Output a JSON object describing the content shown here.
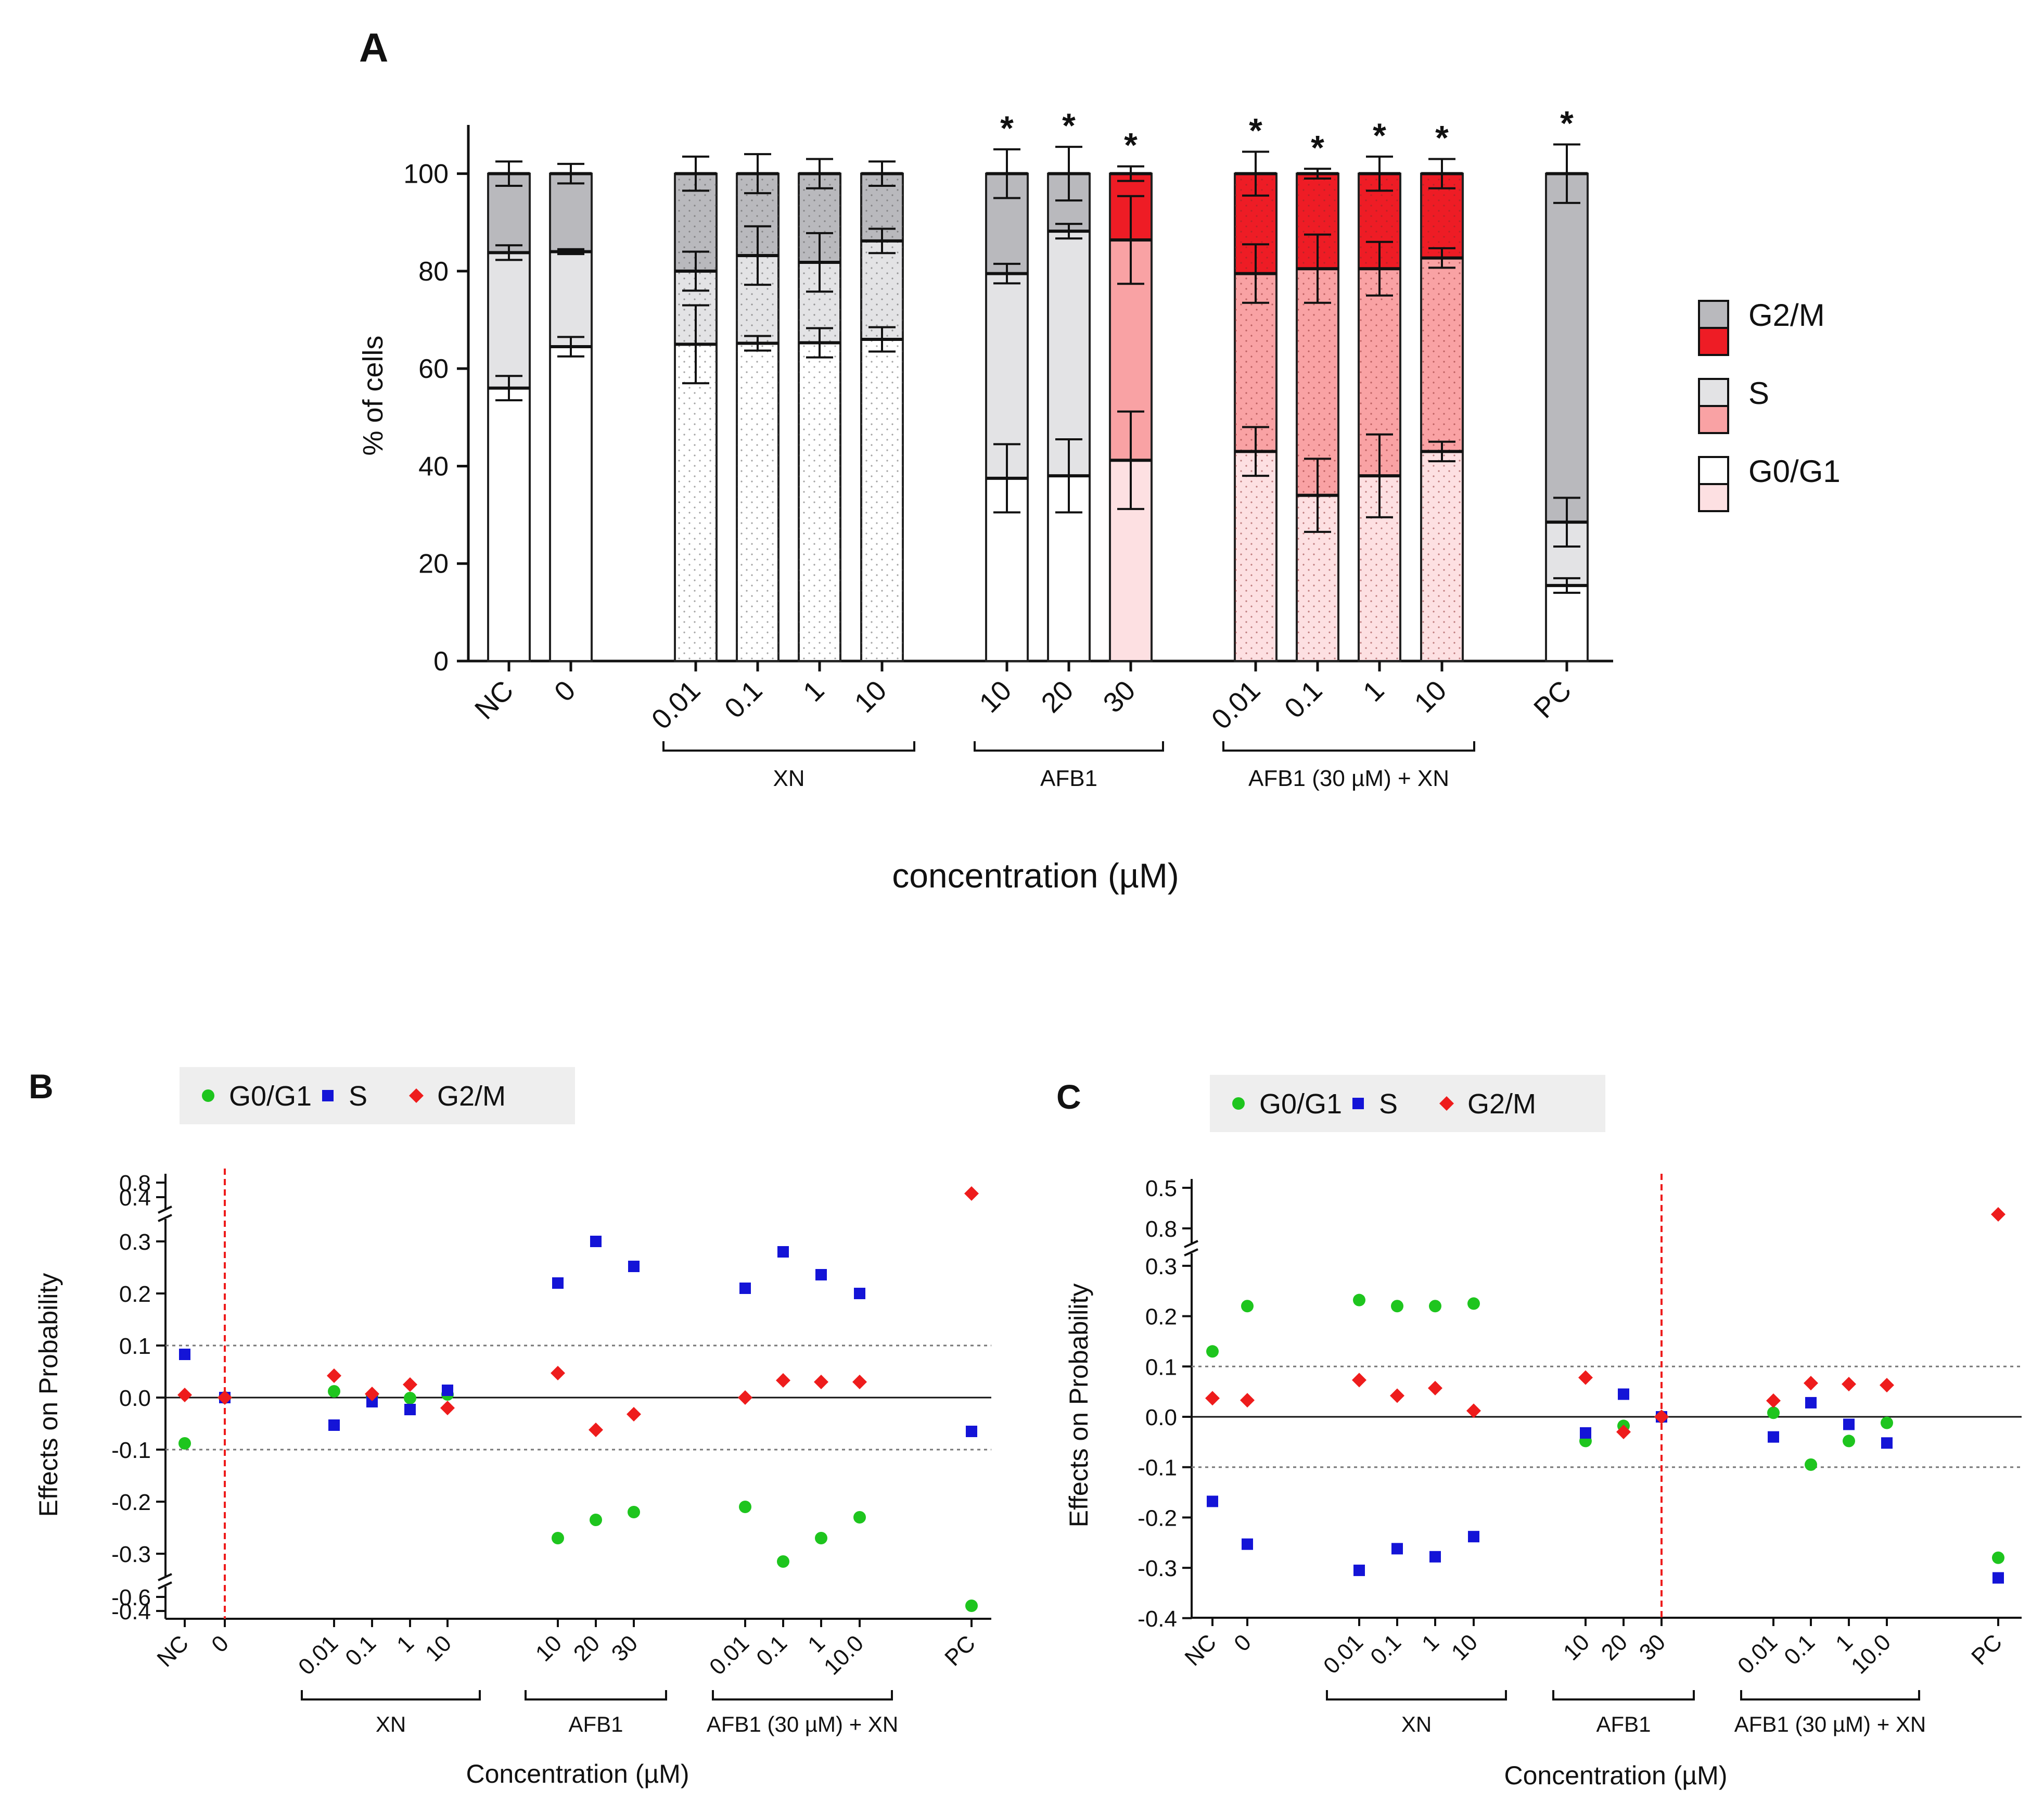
{
  "chart_data": [
    {
      "panel": "A",
      "type": "bar",
      "stacked": true,
      "ylabel": "% of cells",
      "xlabel": "concentration (µM)",
      "ylim": [
        0,
        110
      ],
      "yticks": [
        0,
        20,
        40,
        60,
        80,
        100
      ],
      "categories": [
        "NC",
        "0",
        "0.01",
        "0.1",
        "1",
        "10",
        "10",
        "20",
        "30",
        "0.01",
        "0.1",
        "1",
        "10",
        "PC"
      ],
      "groups": [
        {
          "label": "XN",
          "from": 2,
          "to": 5
        },
        {
          "label": "AFB1",
          "from": 6,
          "to": 8
        },
        {
          "label": "AFB1 (30 µM) + XN",
          "from": 9,
          "to": 12
        }
      ],
      "series": [
        {
          "name": "G0/G1",
          "values": [
            56,
            64.5,
            65,
            65.2,
            65.3,
            66,
            37.5,
            38,
            41.2,
            43,
            34,
            38,
            43,
            15.5
          ],
          "errors": [
            2.5,
            2,
            8,
            1.5,
            3,
            2.5,
            7,
            7.5,
            10,
            5,
            7.5,
            8.5,
            2,
            1.5
          ]
        },
        {
          "name": "S",
          "values": [
            27.8,
            19.5,
            15,
            18,
            16.5,
            20.2,
            42,
            50.2,
            45.2,
            36.5,
            46.5,
            42.5,
            39.7,
            13
          ],
          "errors": [
            1.5,
            0.5,
            4,
            6,
            6,
            2.5,
            2,
            1.5,
            9,
            6,
            7,
            5.5,
            2,
            5
          ]
        },
        {
          "name": "G2/M",
          "values": [
            16.2,
            16,
            20,
            16.8,
            18.2,
            13.8,
            20.5,
            11.8,
            13.6,
            20.5,
            19.5,
            19.5,
            17.3,
            71.5
          ],
          "errors": [
            2.5,
            2,
            3.5,
            4,
            3,
            2.5,
            5,
            5.5,
            1.5,
            4.5,
            1,
            3.5,
            3,
            6
          ]
        }
      ],
      "significant": [
        false,
        false,
        false,
        false,
        false,
        false,
        true,
        true,
        true,
        true,
        true,
        true,
        true,
        true
      ],
      "significance_mark": "*",
      "legend": [
        "G2/M",
        "S",
        "G0/G1"
      ],
      "colors": {
        "gray_g2m": "#b9b9bd",
        "gray_s": "#e3e3e5",
        "gray_g01": "#ffffff",
        "red_g2m": "#ee1c25",
        "red_s": "#f9a2a4",
        "red_g01": "#fde0e2",
        "edge": "#222222"
      }
    },
    {
      "panel": "B",
      "type": "scatter",
      "ylabel": "Effects on Probability",
      "xlabel": "Concentration (µM)",
      "yticks_lower_break": [
        "-0.6",
        "-0.4"
      ],
      "yticks_main": [
        "-0.3",
        "-0.2",
        "-0.1",
        "0.0",
        "0.1",
        "0.2",
        "0.3"
      ],
      "yticks_upper_break": [
        "0.4",
        "0.8"
      ],
      "categories": [
        "NC",
        "0",
        "0.01",
        "0.1",
        "1",
        "10",
        "10",
        "20",
        "30",
        "0.01",
        "0.1",
        "1",
        "10.0",
        "PC"
      ],
      "groups": [
        {
          "label": "XN",
          "from": 2,
          "to": 5
        },
        {
          "label": "AFB1",
          "from": 6,
          "to": 8
        },
        {
          "label": "AFB1 (30 µM) + XN",
          "from": 9,
          "to": 12
        }
      ],
      "reference_category_index": 1,
      "threshold_lines": [
        0.1,
        -0.1
      ],
      "series": [
        {
          "name": "G0/G1",
          "color": "#1ec51e",
          "marker": "circle",
          "values": [
            -0.088,
            0.0,
            0.012,
            0.003,
            -0.001,
            0.006,
            -0.27,
            -0.235,
            -0.22,
            -0.21,
            -0.315,
            -0.27,
            -0.23,
            -0.6
          ]
        },
        {
          "name": "S",
          "color": "#1414d7",
          "marker": "square",
          "values": [
            0.083,
            0.0,
            -0.053,
            -0.008,
            -0.023,
            0.014,
            0.22,
            0.3,
            0.252,
            0.21,
            0.28,
            0.236,
            0.2,
            -0.065
          ]
        },
        {
          "name": "G2/M",
          "color": "#ee1c1c",
          "marker": "diamond",
          "values": [
            0.005,
            0.0,
            0.042,
            0.007,
            0.025,
            -0.02,
            0.047,
            -0.062,
            -0.032,
            0.0,
            0.033,
            0.03,
            0.03,
            0.62
          ]
        }
      ]
    },
    {
      "panel": "C",
      "type": "scatter",
      "ylabel": "Effects on Probability",
      "xlabel": "Concentration (µM)",
      "yticks_main": [
        "-0.4",
        "-0.3",
        "-0.2",
        "-0.1",
        "0.0",
        "0.1",
        "0.2",
        "0.3"
      ],
      "yticks_upper_break": [
        "0.5",
        "0.8"
      ],
      "categories": [
        "NC",
        "0",
        "0.01",
        "0.1",
        "1",
        "10",
        "10",
        "20",
        "30",
        "0.01",
        "0.1",
        "1",
        "10.0",
        "PC"
      ],
      "groups": [
        {
          "label": "XN",
          "from": 2,
          "to": 5
        },
        {
          "label": "AFB1",
          "from": 6,
          "to": 8
        },
        {
          "label": "AFB1 (30 µM) + XN",
          "from": 9,
          "to": 12
        }
      ],
      "reference_category_index": 8,
      "threshold_lines": [
        0.1,
        -0.1
      ],
      "series": [
        {
          "name": "G0/G1",
          "color": "#1ec51e",
          "marker": "circle",
          "values": [
            0.13,
            0.22,
            0.232,
            0.22,
            0.22,
            0.225,
            -0.048,
            -0.018,
            0.0,
            0.008,
            -0.095,
            -0.048,
            -0.012,
            -0.28
          ]
        },
        {
          "name": "S",
          "color": "#1414d7",
          "marker": "square",
          "values": [
            -0.168,
            -0.253,
            -0.305,
            -0.262,
            -0.278,
            -0.238,
            -0.032,
            0.045,
            0.0,
            -0.04,
            0.028,
            -0.015,
            -0.052,
            -0.32
          ]
        },
        {
          "name": "G2/M",
          "color": "#ee1c1c",
          "marker": "diamond",
          "values": [
            0.037,
            0.033,
            0.073,
            0.042,
            0.057,
            0.012,
            0.078,
            -0.03,
            0.0,
            0.032,
            0.067,
            0.065,
            0.063,
            0.62
          ]
        }
      ]
    }
  ],
  "panel_labels": {
    "a": "A",
    "b": "B",
    "c": "C"
  }
}
